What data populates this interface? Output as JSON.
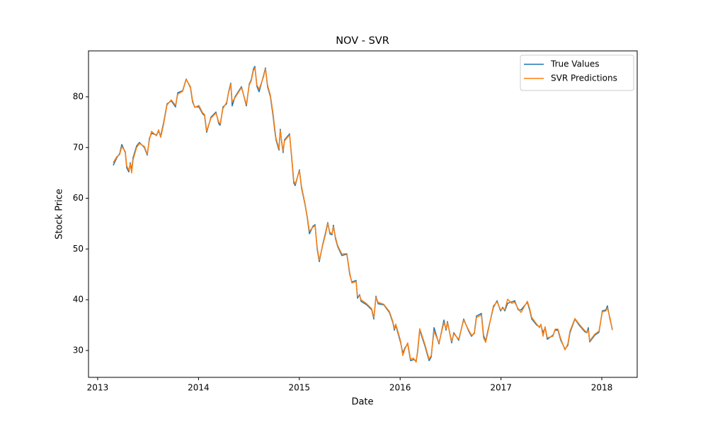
{
  "chart_data": {
    "type": "line",
    "title": "NOV - SVR",
    "x_label": "Date",
    "y_label": "Stock Price",
    "xlim": [
      2012.909,
      2018.351
    ],
    "xticks": [
      2013,
      2014,
      2015,
      2016,
      2017,
      2018
    ],
    "ylim": [
      24.7,
      89.05
    ],
    "yticks": [
      30,
      40,
      50,
      60,
      70,
      80
    ],
    "grid": false,
    "legend": "upper right",
    "x": [
      2013.154,
      2013.19,
      2013.218,
      2013.239,
      2013.274,
      2013.288,
      2013.309,
      2013.323,
      2013.337,
      2013.351,
      2013.386,
      2013.414,
      2013.463,
      2013.492,
      2013.513,
      2013.534,
      2013.583,
      2013.604,
      2013.625,
      2013.653,
      2013.688,
      2013.73,
      2013.772,
      2013.794,
      2013.843,
      2013.878,
      2013.92,
      2013.941,
      2013.962,
      2014.004,
      2014.039,
      2014.06,
      2014.081,
      2014.124,
      2014.173,
      2014.201,
      2014.215,
      2014.243,
      2014.278,
      2014.299,
      2014.32,
      2014.334,
      2014.362,
      2014.426,
      2014.475,
      2014.503,
      2014.524,
      2014.545,
      2014.559,
      2014.58,
      2014.601,
      2014.643,
      2014.664,
      2014.685,
      2014.713,
      2014.741,
      2014.755,
      2014.769,
      2014.798,
      2014.811,
      2014.825,
      2014.839,
      2014.853,
      2014.903,
      2014.924,
      2014.945,
      2014.959,
      2015.001,
      2015.022,
      2015.057,
      2015.078,
      2015.1,
      2015.135,
      2015.156,
      2015.177,
      2015.198,
      2015.233,
      2015.261,
      2015.282,
      2015.303,
      2015.324,
      2015.338,
      2015.359,
      2015.38,
      2015.422,
      2015.471,
      2015.5,
      2015.521,
      2015.563,
      2015.577,
      2015.598,
      2015.612,
      2015.668,
      2015.718,
      2015.739,
      2015.76,
      2015.781,
      2015.837,
      2015.893,
      2015.928,
      2015.942,
      2015.956,
      2015.977,
      2016.005,
      2016.026,
      2016.047,
      2016.075,
      2016.103,
      2016.131,
      2016.159,
      2016.173,
      2016.194,
      2016.244,
      2016.287,
      2016.308,
      2016.336,
      2016.385,
      2016.434,
      2016.455,
      2016.469,
      2016.511,
      2016.532,
      2016.581,
      2016.63,
      2016.68,
      2016.708,
      2016.736,
      2016.757,
      2016.806,
      2016.827,
      2016.848,
      2016.869,
      2016.925,
      2016.961,
      2016.996,
      2017.017,
      2017.038,
      2017.066,
      2017.108,
      2017.136,
      2017.171,
      2017.199,
      2017.262,
      2017.284,
      2017.305,
      2017.354,
      2017.382,
      2017.396,
      2017.417,
      2017.438,
      2017.459,
      2017.515,
      2017.537,
      2017.565,
      2017.593,
      2017.635,
      2017.663,
      2017.684,
      2017.733,
      2017.775,
      2017.831,
      2017.852,
      2017.866,
      2017.88,
      2017.93,
      2017.972,
      2018.005,
      2018.041,
      2018.055,
      2018.083,
      2018.104
    ],
    "series": [
      {
        "name": "True Values",
        "color": "#1f77b4",
        "values": [
          66.5,
          68,
          68.8,
          70.6,
          69,
          66,
          65.2,
          67,
          65.5,
          68,
          70.3,
          71,
          70,
          68.5,
          71.8,
          72.8,
          72.5,
          73.2,
          72.3,
          74.8,
          78.6,
          79.2,
          78,
          80.8,
          81.2,
          83.5,
          81.8,
          79,
          78,
          78,
          76.7,
          76.3,
          73,
          76,
          77,
          74.7,
          74.4,
          78,
          78.6,
          81,
          82.7,
          78.2,
          80,
          82,
          78.2,
          82.5,
          83.4,
          85.5,
          86,
          82,
          81,
          84,
          85.7,
          82,
          80,
          76,
          73.5,
          71.5,
          69.5,
          73.6,
          71,
          69,
          71.5,
          72.7,
          68,
          63,
          62.5,
          65.6,
          62,
          58.7,
          56.3,
          53,
          54.5,
          54.8,
          50,
          47.5,
          51,
          53.3,
          55.2,
          53,
          52.8,
          54.7,
          52,
          50.5,
          48.7,
          49,
          45,
          43.5,
          43.8,
          40.3,
          41,
          39.7,
          39,
          38,
          36.2,
          40.7,
          39.2,
          39,
          37.5,
          35.5,
          34,
          35,
          33.5,
          31.5,
          29.5,
          30.5,
          31.3,
          28,
          28.2,
          28,
          29.7,
          34,
          31,
          28,
          28.7,
          34.5,
          31.3,
          36,
          34,
          35.7,
          31.5,
          33.5,
          32,
          36.2,
          33.8,
          32.8,
          33.5,
          36.8,
          37.3,
          33,
          31.8,
          33.8,
          38.5,
          39.8,
          37.8,
          38.5,
          37.8,
          39.3,
          39.6,
          39.8,
          38,
          38,
          39.5,
          38,
          36.2,
          35,
          34.7,
          35,
          33.5,
          34.5,
          32.2,
          33,
          34,
          34,
          32,
          30.3,
          31,
          33.5,
          36.2,
          35,
          33.7,
          33.5,
          34.5,
          31.7,
          33,
          33.6,
          37.8,
          38,
          38.8,
          36,
          34.2
        ]
      },
      {
        "name": "SVR Predictions",
        "color": "#ff7f0e",
        "values": [
          67,
          68.2,
          68.6,
          70.2,
          69.2,
          66.4,
          65.5,
          66.8,
          65,
          67.6,
          70,
          70.8,
          70.2,
          68.7,
          71.5,
          73.2,
          72.3,
          73.5,
          72,
          74.5,
          78.4,
          79.4,
          78.3,
          80.5,
          81.1,
          83.4,
          82,
          79.3,
          77.9,
          78.3,
          76.9,
          76.5,
          73.3,
          75.8,
          76.8,
          75,
          74.7,
          77.7,
          78.9,
          80.8,
          82.5,
          79,
          79.8,
          81.8,
          78.5,
          82.3,
          83.2,
          85.2,
          85.7,
          82.3,
          81.5,
          83.8,
          85.5,
          82.3,
          80.3,
          76.5,
          74,
          71.8,
          69.8,
          73.3,
          71.3,
          69.3,
          71.3,
          72.5,
          68.3,
          63.4,
          62.8,
          65.4,
          62.3,
          58.9,
          56.5,
          53.5,
          54.3,
          54.6,
          50.3,
          47.8,
          50.8,
          53,
          55,
          53.3,
          53,
          54.4,
          52.3,
          50.7,
          49,
          49.1,
          45.3,
          43.3,
          43.6,
          40.7,
          40.8,
          40,
          39.2,
          38.2,
          36.5,
          40.5,
          39.5,
          39.1,
          37.7,
          35.7,
          34.3,
          35.2,
          33.8,
          31.8,
          29,
          30.3,
          31.5,
          28.3,
          28.5,
          27.7,
          30,
          34.3,
          31.3,
          28.3,
          29,
          33.8,
          31.5,
          35.5,
          34.3,
          35.5,
          31.8,
          33.3,
          32.2,
          36,
          34,
          33,
          33.3,
          36.5,
          37,
          32.5,
          31.6,
          33.5,
          38.8,
          39.6,
          38,
          38.3,
          38,
          40.1,
          39.3,
          39.5,
          38.2,
          37.5,
          39.7,
          38.3,
          36.5,
          35.2,
          34.5,
          35.2,
          32.8,
          34.7,
          32.5,
          32.8,
          34.2,
          34.2,
          32.3,
          30.1,
          31.3,
          33.8,
          36.3,
          35.2,
          33.9,
          33.6,
          34,
          31.9,
          33.2,
          33.8,
          37.6,
          37.8,
          38.4,
          36.3,
          34
        ]
      }
    ]
  }
}
